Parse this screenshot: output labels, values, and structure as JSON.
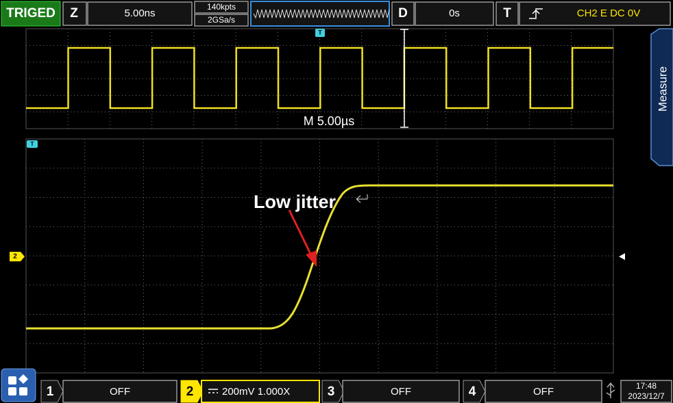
{
  "top_bar": {
    "status": "TRIGED",
    "zoom": {
      "label": "Z",
      "value": "5.00ns"
    },
    "memory_depth": "140kpts",
    "sample_rate": "2GSa/s",
    "delay": {
      "label": "D",
      "value": "0s"
    },
    "trigger": {
      "label": "T",
      "setting": "CH2 E DC 0V"
    }
  },
  "waveform": {
    "main_timebase": "M  5.00µs",
    "annotation": "Low jitter",
    "channel_marker": "2",
    "trigger_marker": "T"
  },
  "side_tab": "Measure",
  "channels": [
    {
      "number": "1",
      "setting": "OFF"
    },
    {
      "number": "2",
      "setting": "200mV 1.000X"
    },
    {
      "number": "3",
      "setting": "OFF"
    },
    {
      "number": "4",
      "setting": "OFF"
    }
  ],
  "clock": {
    "time": "17:48",
    "date": "2023/12/7"
  }
}
